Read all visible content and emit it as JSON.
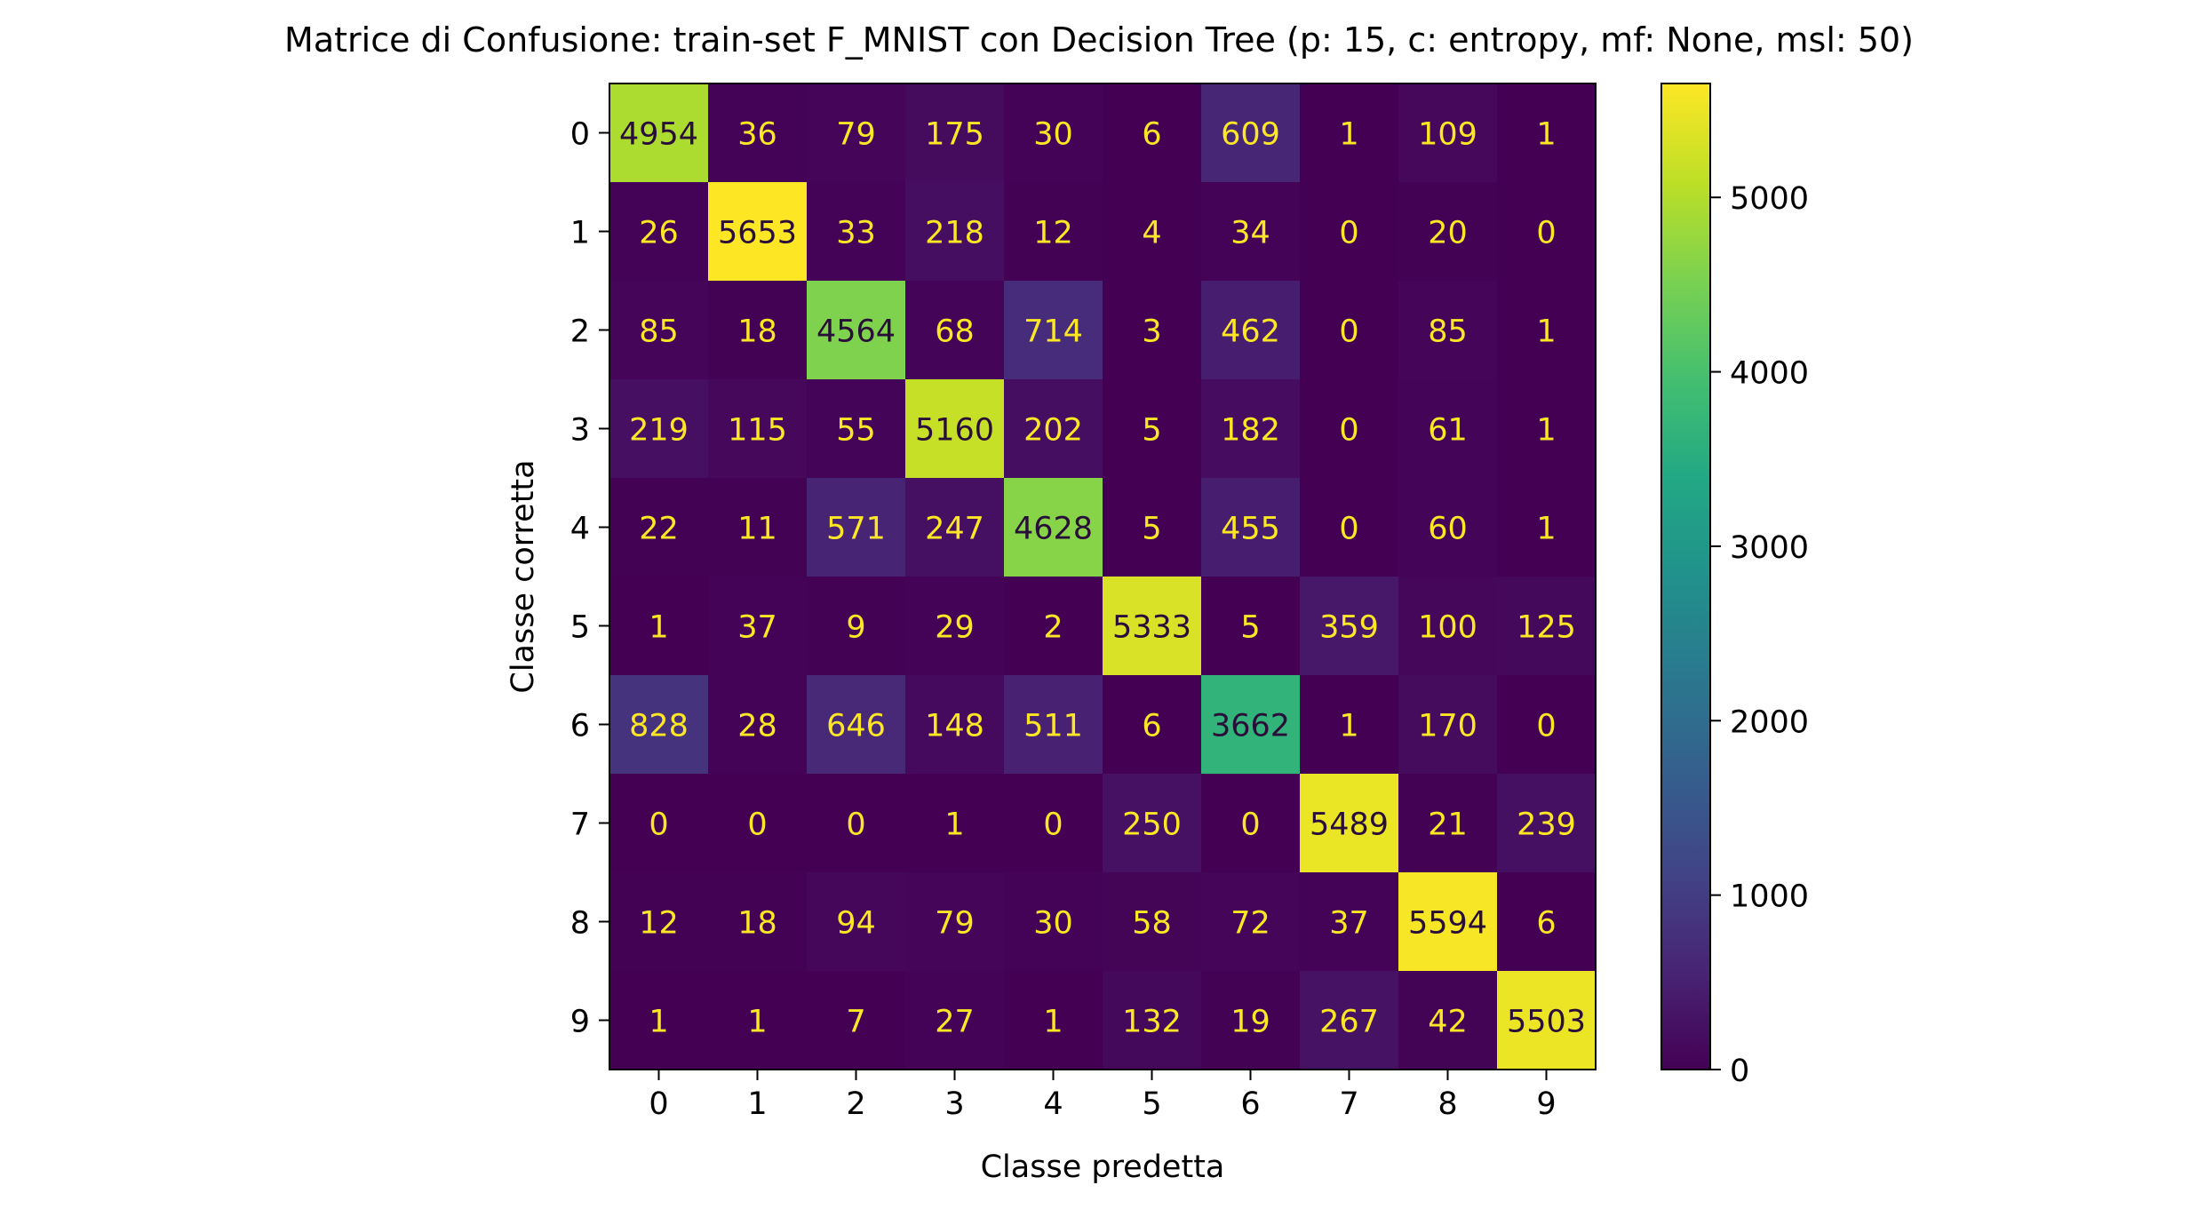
{
  "chart_data": {
    "type": "heatmap",
    "title": "Matrice di Confusione: train-set F_MNIST con Decision Tree (p: 15, c: entropy, mf: None, msl: 50)",
    "xlabel": "Classe predetta",
    "ylabel": "Classe corretta",
    "x_categories": [
      "0",
      "1",
      "2",
      "3",
      "4",
      "5",
      "6",
      "7",
      "8",
      "9"
    ],
    "y_categories": [
      "0",
      "1",
      "2",
      "3",
      "4",
      "5",
      "6",
      "7",
      "8",
      "9"
    ],
    "values": [
      [
        4954,
        36,
        79,
        175,
        30,
        6,
        609,
        1,
        109,
        1
      ],
      [
        26,
        5653,
        33,
        218,
        12,
        4,
        34,
        0,
        20,
        0
      ],
      [
        85,
        18,
        4564,
        68,
        714,
        3,
        462,
        0,
        85,
        1
      ],
      [
        219,
        115,
        55,
        5160,
        202,
        5,
        182,
        0,
        61,
        1
      ],
      [
        22,
        11,
        571,
        247,
        4628,
        5,
        455,
        0,
        60,
        1
      ],
      [
        1,
        37,
        9,
        29,
        2,
        5333,
        5,
        359,
        100,
        125
      ],
      [
        828,
        28,
        646,
        148,
        511,
        6,
        3662,
        1,
        170,
        0
      ],
      [
        0,
        0,
        0,
        1,
        0,
        250,
        0,
        5489,
        21,
        239
      ],
      [
        12,
        18,
        94,
        79,
        30,
        58,
        72,
        37,
        5594,
        6
      ],
      [
        1,
        1,
        7,
        27,
        1,
        132,
        19,
        267,
        42,
        5503
      ]
    ],
    "colorscale": "viridis",
    "colorbar": {
      "range": [
        0,
        5653
      ],
      "ticks": [
        "0",
        "1000",
        "2000",
        "3000",
        "4000",
        "5000"
      ]
    },
    "annotation_colors": {
      "dark_cell": "#fde725",
      "light_cell": "#2a0e3a"
    }
  }
}
